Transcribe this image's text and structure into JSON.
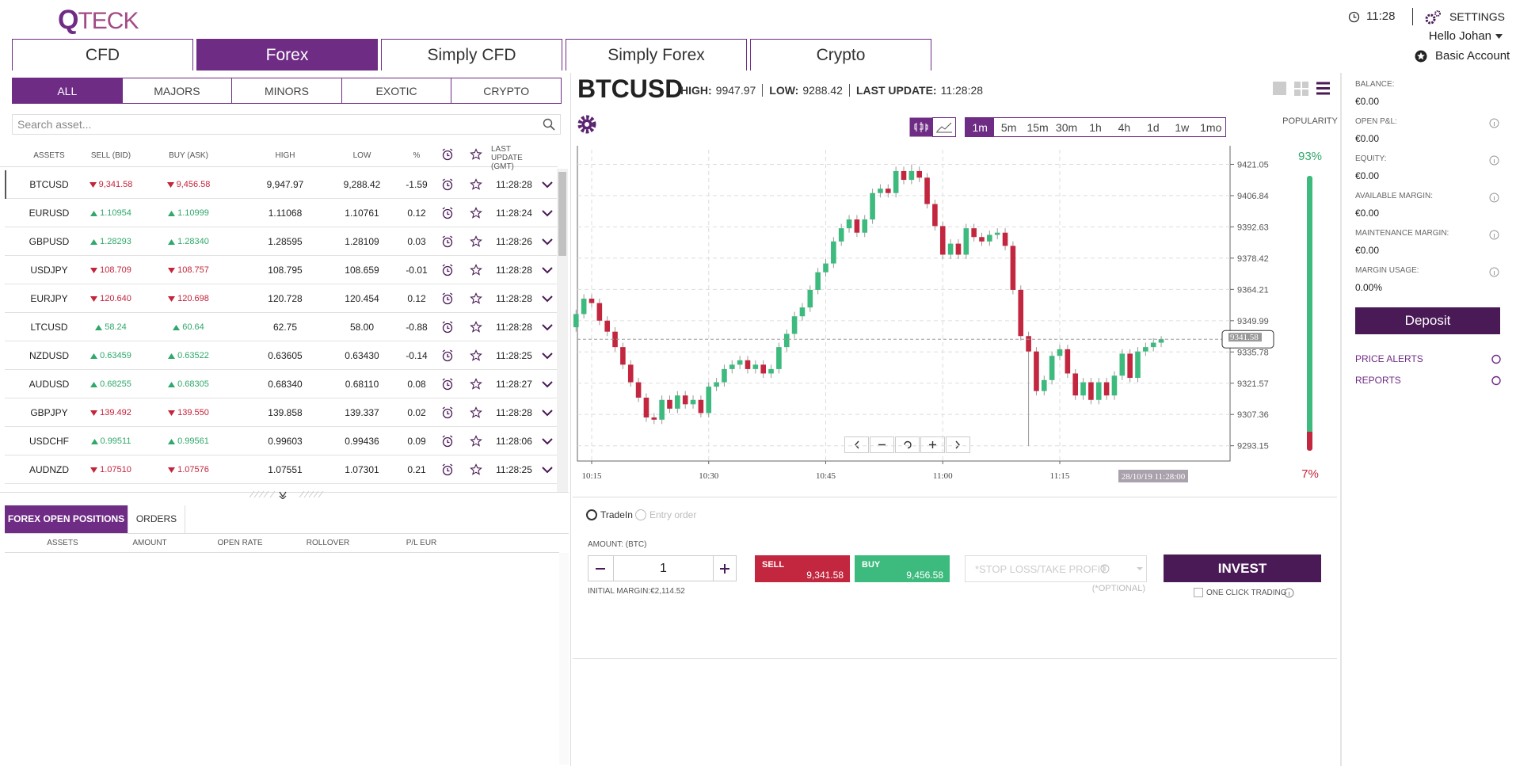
{
  "header": {
    "logo": "QTECK",
    "time": "11:28",
    "settings": "SETTINGS",
    "user": "Hello Johan",
    "account": "Basic Account"
  },
  "tabs": [
    "CFD",
    "Forex",
    "Simply CFD",
    "Simply Forex",
    "Crypto"
  ],
  "active_tab": 1,
  "filters": [
    "ALL",
    "MAJORS",
    "MINORS",
    "EXOTIC",
    "CRYPTO"
  ],
  "active_filter": 0,
  "search_placeholder": "Search asset...",
  "table": {
    "columns": [
      "ASSETS",
      "SELL (BID)",
      "BUY (ASK)",
      "HIGH",
      "LOW",
      "%",
      "LAST UPDATE (GMT)"
    ],
    "selected_row": 0,
    "directions": [
      "down",
      "up",
      "up",
      "down",
      "down",
      "up",
      "up",
      "up",
      "down",
      "up",
      "down"
    ],
    "rows": [
      [
        "BTCUSD",
        "9,341.58",
        "9,456.58",
        "9,947.97",
        "9,288.42",
        "-1.59",
        "11:28:28"
      ],
      [
        "EURUSD",
        "1.10954",
        "1.10999",
        "1.11068",
        "1.10761",
        "0.12",
        "11:28:24"
      ],
      [
        "GBPUSD",
        "1.28293",
        "1.28340",
        "1.28595",
        "1.28109",
        "0.03",
        "11:28:26"
      ],
      [
        "USDJPY",
        "108.709",
        "108.757",
        "108.795",
        "108.659",
        "-0.01",
        "11:28:28"
      ],
      [
        "EURJPY",
        "120.640",
        "120.698",
        "120.728",
        "120.454",
        "0.12",
        "11:28:28"
      ],
      [
        "LTCUSD",
        "58.24",
        "60.64",
        "62.75",
        "58.00",
        "-0.88",
        "11:28:28"
      ],
      [
        "NZDUSD",
        "0.63459",
        "0.63522",
        "0.63605",
        "0.63430",
        "-0.14",
        "11:28:25"
      ],
      [
        "AUDUSD",
        "0.68255",
        "0.68305",
        "0.68340",
        "0.68110",
        "0.08",
        "11:28:27"
      ],
      [
        "GBPJPY",
        "139.492",
        "139.550",
        "139.858",
        "139.337",
        "0.02",
        "11:28:28"
      ],
      [
        "USDCHF",
        "0.99511",
        "0.99561",
        "0.99603",
        "0.99436",
        "0.09",
        "11:28:06"
      ],
      [
        "AUDNZD",
        "1.07510",
        "1.07576",
        "1.07551",
        "1.07301",
        "0.21",
        "11:28:25"
      ]
    ]
  },
  "positions": {
    "tabs": [
      "FOREX OPEN POSITIONS",
      "ORDERS"
    ],
    "active_tab": 0,
    "columns": [
      "ASSETS",
      "AMOUNT",
      "OPEN RATE",
      "ROLLOVER",
      "P/L EUR"
    ]
  },
  "instrument": {
    "symbol": "BTCUSD",
    "high_label": "HIGH:",
    "high": "9947.97",
    "low_label": "LOW:",
    "low": "9288.42",
    "update_label": "LAST UPDATE:",
    "update": "11:28:28"
  },
  "timeframes": [
    "1m",
    "5m",
    "15m",
    "30m",
    "1h",
    "4h",
    "1d",
    "1w",
    "1mo"
  ],
  "active_timeframe": 0,
  "popularity": {
    "title": "POPULARITY",
    "buy": {
      "value": 93,
      "label": "93%"
    },
    "sell": {
      "value": 7,
      "label": "7%"
    }
  },
  "trade": {
    "order_types": [
      "TradeIn",
      "Entry order"
    ],
    "amount_label": "AMOUNT: (BTC)",
    "amount": "1",
    "initial_margin": "INITIAL MARGIN:€2,114.52",
    "sell_label": "SELL",
    "sell_price": "9,341.58",
    "buy_label": "BUY",
    "buy_price": "9,456.58",
    "stop_loss": "*STOP LOSS/TAKE PROFIT",
    "optional": "(*OPTIONAL)",
    "invest": "INVEST",
    "one_click": "ONE CLICK TRADING"
  },
  "account": {
    "items": [
      {
        "label": "BALANCE:",
        "value": "€0.00"
      },
      {
        "label": "OPEN P&L:",
        "value": "€0.00"
      },
      {
        "label": "EQUITY:",
        "value": "€0.00"
      },
      {
        "label": "AVAILABLE MARGIN:",
        "value": "€0.00"
      },
      {
        "label": "MAINTENANCE MARGIN:",
        "value": "€0.00"
      },
      {
        "label": "MARGIN USAGE:",
        "value": "0.00%"
      }
    ],
    "deposit": "Deposit",
    "links": [
      "PRICE ALERTS",
      "REPORTS"
    ]
  },
  "chart_data": {
    "type": "candlestick",
    "x": [
      "10:13",
      "10:14",
      "10:15",
      "10:16",
      "10:17",
      "10:18",
      "10:19",
      "10:20",
      "10:21",
      "10:22",
      "10:23",
      "10:24",
      "10:25",
      "10:26",
      "10:27",
      "10:28",
      "10:29",
      "10:30",
      "10:31",
      "10:32",
      "10:33",
      "10:34",
      "10:35",
      "10:36",
      "10:37",
      "10:38",
      "10:39",
      "10:40",
      "10:41",
      "10:42",
      "10:43",
      "10:44",
      "10:45",
      "10:46",
      "10:47",
      "10:48",
      "10:49",
      "10:50",
      "10:51",
      "10:52",
      "10:53",
      "10:54",
      "10:55",
      "10:56",
      "10:57",
      "10:58",
      "10:59",
      "11:00",
      "11:01",
      "11:02",
      "11:03",
      "11:04",
      "11:05",
      "11:06",
      "11:07",
      "11:08",
      "11:09",
      "11:10",
      "11:11",
      "11:12",
      "11:13",
      "11:14",
      "11:15",
      "11:16",
      "11:17",
      "11:18",
      "11:19",
      "11:20",
      "11:21",
      "11:22",
      "11:23",
      "11:24",
      "11:25",
      "11:26",
      "11:27",
      "11:28"
    ],
    "open": [
      9347,
      9353,
      9360,
      9358,
      9350,
      9345,
      9338,
      9330,
      9322,
      9315,
      9306,
      9305,
      9314,
      9310,
      9316,
      9312,
      9314,
      9308,
      9320,
      9322,
      9328,
      9330,
      9332,
      9328,
      9330,
      9326,
      9328,
      9338,
      9344,
      9352,
      9356,
      9364,
      9372,
      9376,
      9386,
      9392,
      9396,
      9390,
      9396,
      9408,
      9410,
      9408,
      9418,
      9414,
      9418,
      9415,
      9403,
      9393,
      9380,
      9385,
      9380,
      9392,
      9388,
      9386,
      9389,
      9390,
      9384,
      9364,
      9343,
      9336,
      9318,
      9323,
      9334,
      9337,
      9326,
      9316,
      9322,
      9314,
      9322,
      9316,
      9325,
      9335,
      9324,
      9336,
      9338,
      9340
    ],
    "high": [
      9355,
      9362,
      9362,
      9360,
      9352,
      9347,
      9340,
      9332,
      9324,
      9317,
      9308,
      9316,
      9316,
      9318,
      9318,
      9316,
      9316,
      9322,
      9324,
      9330,
      9332,
      9334,
      9334,
      9332,
      9332,
      9330,
      9340,
      9346,
      9354,
      9358,
      9366,
      9374,
      9378,
      9388,
      9394,
      9398,
      9398,
      9398,
      9410,
      9412,
      9412,
      9420,
      9420,
      9421,
      9420,
      9417,
      9405,
      9395,
      9387,
      9387,
      9394,
      9394,
      9390,
      9391,
      9392,
      9392,
      9386,
      9366,
      9345,
      9338,
      9325,
      9336,
      9339,
      9339,
      9328,
      9324,
      9324,
      9324,
      9324,
      9327,
      9337,
      9337,
      9338,
      9340,
      9342,
      9343
    ],
    "low": [
      9345,
      9351,
      9356,
      9348,
      9343,
      9336,
      9328,
      9320,
      9313,
      9304,
      9303,
      9303,
      9308,
      9308,
      9310,
      9310,
      9306,
      9306,
      9318,
      9320,
      9326,
      9328,
      9326,
      9326,
      9324,
      9324,
      9326,
      9336,
      9342,
      9350,
      9354,
      9362,
      9370,
      9374,
      9384,
      9390,
      9388,
      9388,
      9394,
      9406,
      9406,
      9406,
      9412,
      9412,
      9413,
      9401,
      9391,
      9378,
      9378,
      9378,
      9378,
      9386,
      9384,
      9384,
      9387,
      9382,
      9362,
      9341,
      9293,
      9316,
      9316,
      9321,
      9332,
      9324,
      9314,
      9314,
      9312,
      9312,
      9314,
      9314,
      9323,
      9322,
      9322,
      9334,
      9336,
      9338
    ],
    "close": [
      9353,
      9360,
      9358,
      9350,
      9345,
      9338,
      9330,
      9322,
      9315,
      9306,
      9305,
      9314,
      9310,
      9316,
      9312,
      9314,
      9308,
      9320,
      9322,
      9328,
      9330,
      9332,
      9328,
      9330,
      9326,
      9328,
      9338,
      9344,
      9352,
      9356,
      9364,
      9372,
      9376,
      9386,
      9392,
      9396,
      9390,
      9396,
      9408,
      9410,
      9408,
      9418,
      9414,
      9418,
      9415,
      9403,
      9393,
      9380,
      9385,
      9380,
      9392,
      9388,
      9386,
      9389,
      9390,
      9384,
      9364,
      9343,
      9336,
      9318,
      9323,
      9334,
      9337,
      9326,
      9316,
      9322,
      9314,
      9322,
      9316,
      9325,
      9335,
      9324,
      9336,
      9338,
      9340,
      9341.58
    ],
    "up_color": "#3dba7e",
    "down_color": "#c2273f",
    "ylim": [
      9286.2,
      9427.7
    ],
    "yticks": [
      9421.05,
      9406.84,
      9392.63,
      9378.42,
      9364.21,
      9349.99,
      9335.78,
      9321.57,
      9307.36,
      9293.15
    ],
    "xticks": [
      "10:15",
      "10:30",
      "10:45",
      "11:00",
      "11:15"
    ],
    "grid": true,
    "last_price": 9341.58,
    "cursor_label": "28/10/19 11:28:00"
  }
}
